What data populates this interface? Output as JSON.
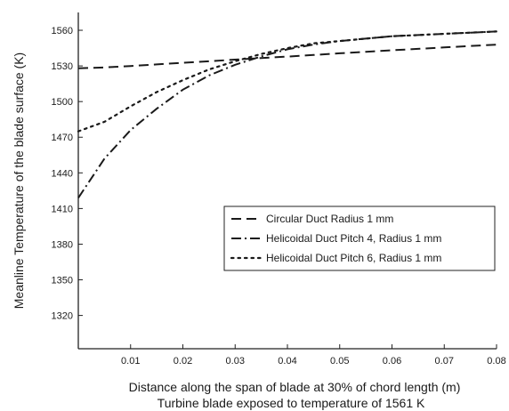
{
  "chart_data": {
    "type": "line",
    "title": "",
    "xlabel": "Distance along the span of blade at 30% of chord length (m)",
    "xlabel_line2": "Turbine blade exposed to temperature of 1561 K",
    "ylabel": "Meanline Temperature of the blade surface (K)",
    "xlim": [
      0,
      0.08
    ],
    "ylim": [
      1292,
      1575
    ],
    "x_ticks": [
      0.01,
      0.02,
      0.03,
      0.04,
      0.05,
      0.06,
      0.07,
      0.08
    ],
    "x_tick_labels": [
      "0.01",
      "0.02",
      "0.03",
      "0.04",
      "0.05",
      "0.06",
      "0.07",
      "0.08"
    ],
    "y_ticks": [
      1320,
      1350,
      1380,
      1410,
      1440,
      1470,
      1500,
      1530,
      1560
    ],
    "y_tick_labels": [
      "1320",
      "1350",
      "1380",
      "1410",
      "1440",
      "1470",
      "1500",
      "1530",
      "1560"
    ],
    "grid": false,
    "legend_position": "center-right",
    "series": [
      {
        "name": "Circular Duct Radius 1 mm",
        "style": "dashed",
        "x": [
          0,
          0.005,
          0.01,
          0.015,
          0.02,
          0.025,
          0.03,
          0.035,
          0.04,
          0.045,
          0.05,
          0.055,
          0.06,
          0.065,
          0.07,
          0.075,
          0.08
        ],
        "y": [
          1528,
          1528.7,
          1529.9,
          1531.3,
          1532.6,
          1533.9,
          1535.3,
          1536.6,
          1537.9,
          1539.2,
          1540.6,
          1541.9,
          1543.2,
          1544.4,
          1545.6,
          1546.8,
          1547.9
        ]
      },
      {
        "name": "Helicoidal Duct Pitch 4, Radius 1 mm",
        "style": "dashdot",
        "x": [
          0,
          0.005,
          0.01,
          0.015,
          0.02,
          0.025,
          0.03,
          0.035,
          0.04,
          0.045,
          0.05,
          0.055,
          0.06,
          0.065,
          0.07,
          0.075,
          0.08
        ],
        "y": [
          1419,
          1452,
          1476,
          1494,
          1510,
          1522,
          1531,
          1538,
          1544,
          1548,
          1551,
          1553,
          1555,
          1556,
          1557,
          1558,
          1559
        ]
      },
      {
        "name": "Helicoidal Duct Pitch 6, Radius 1 mm",
        "style": "dotted",
        "x": [
          0,
          0.005,
          0.01,
          0.015,
          0.02,
          0.025,
          0.03,
          0.035,
          0.04,
          0.045,
          0.05,
          0.055,
          0.06,
          0.065,
          0.07,
          0.075,
          0.08
        ],
        "y": [
          1475,
          1483,
          1496,
          1508,
          1518,
          1527,
          1534,
          1540,
          1545,
          1549,
          1551,
          1553,
          1555,
          1556,
          1557,
          1558,
          1559
        ]
      }
    ]
  }
}
